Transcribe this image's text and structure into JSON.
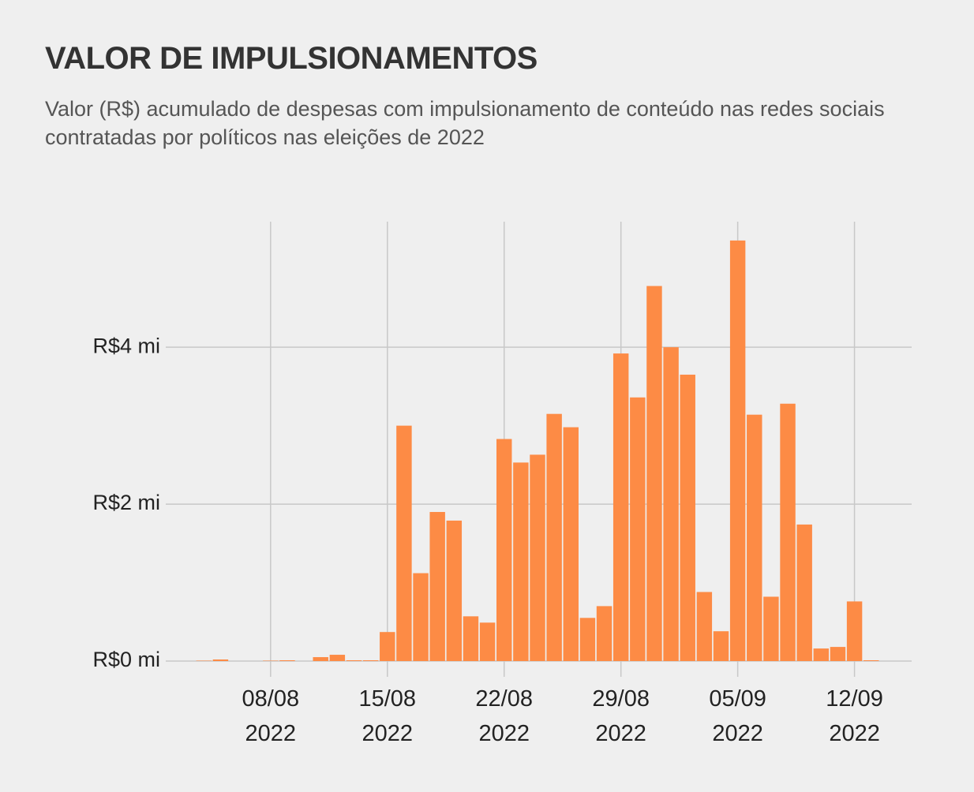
{
  "chart_data": {
    "type": "bar",
    "title": "VALOR DE IMPULSIONAMENTOS",
    "subtitle": "Valor (R$) acumulado de despesas com impulsionamento de conteúdo nas redes sociais contratadas por políticos nas eleições de 2022",
    "x": [
      "2022-08-04",
      "2022-08-05",
      "2022-08-06",
      "2022-08-07",
      "2022-08-08",
      "2022-08-09",
      "2022-08-10",
      "2022-08-11",
      "2022-08-12",
      "2022-08-13",
      "2022-08-14",
      "2022-08-15",
      "2022-08-16",
      "2022-08-17",
      "2022-08-18",
      "2022-08-19",
      "2022-08-20",
      "2022-08-21",
      "2022-08-22",
      "2022-08-23",
      "2022-08-24",
      "2022-08-25",
      "2022-08-26",
      "2022-08-27",
      "2022-08-28",
      "2022-08-29",
      "2022-08-30",
      "2022-08-31",
      "2022-09-01",
      "2022-09-02",
      "2022-09-03",
      "2022-09-04",
      "2022-09-05",
      "2022-09-06",
      "2022-09-07",
      "2022-09-08",
      "2022-09-09",
      "2022-09-10",
      "2022-09-11",
      "2022-09-12",
      "2022-09-13"
    ],
    "values": [
      0.005,
      0.02,
      0,
      0,
      0.005,
      0.01,
      0,
      0.05,
      0.08,
      0.01,
      0.01,
      0.37,
      3.0,
      1.12,
      1.9,
      1.79,
      0.57,
      0.49,
      2.83,
      2.53,
      2.63,
      3.15,
      2.98,
      0.55,
      0.7,
      3.92,
      3.36,
      4.78,
      4.0,
      3.65,
      0.88,
      0.38,
      5.36,
      3.14,
      0.82,
      3.28,
      1.74,
      0.16,
      0.18,
      0.76,
      0.01
    ],
    "color": "#fd8b45",
    "xlim": [
      "2022-08-02",
      "2022-09-15"
    ],
    "xticks": [
      {
        "value": "2022-08-08",
        "label": "08/08\n2022"
      },
      {
        "value": "2022-08-15",
        "label": "15/08\n2022"
      },
      {
        "value": "2022-08-22",
        "label": "22/08\n2022"
      },
      {
        "value": "2022-08-29",
        "label": "29/08\n2022"
      },
      {
        "value": "2022-09-05",
        "label": "05/09\n2022"
      },
      {
        "value": "2022-09-12",
        "label": "12/09\n2022"
      }
    ],
    "ylim": [
      0,
      5.6
    ],
    "yticks": [
      {
        "value": 0,
        "label": "R$0 mi"
      },
      {
        "value": 2,
        "label": "R$2 mi"
      },
      {
        "value": 4,
        "label": "R$4 mi"
      }
    ],
    "grid": true
  }
}
